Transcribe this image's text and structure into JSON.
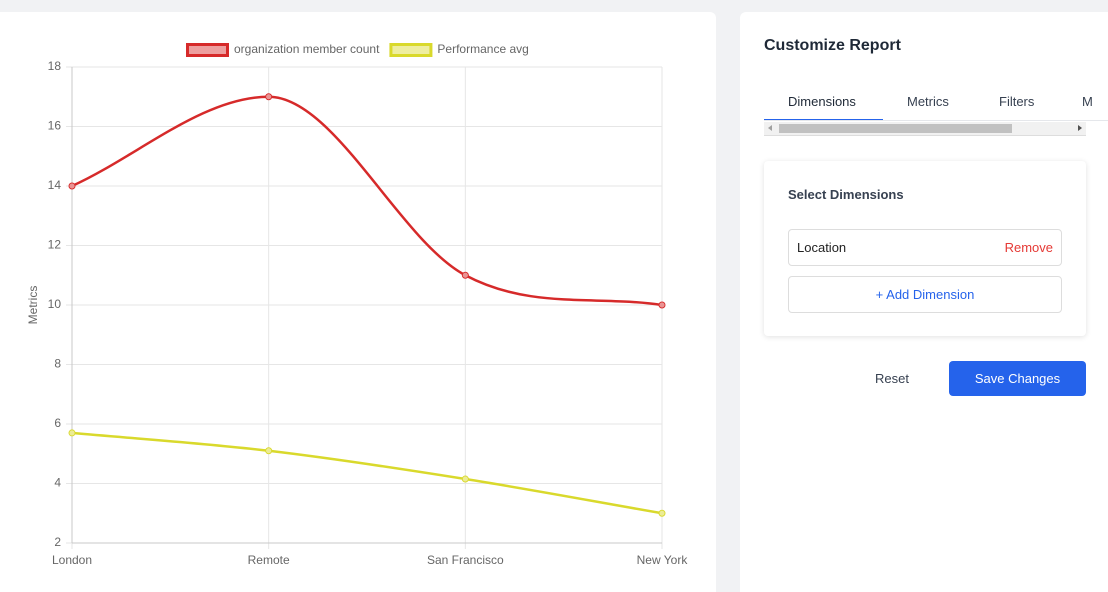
{
  "chart_data": {
    "type": "line",
    "categories": [
      "London",
      "Remote",
      "San Francisco",
      "New York"
    ],
    "y_label": "Metrics",
    "series": [
      {
        "name": "organization member count",
        "color": "#d62a2a",
        "values": [
          14,
          17,
          11,
          10
        ]
      },
      {
        "name": "Performance avg",
        "color": "#d9d92c",
        "values": [
          5.7,
          5.1,
          4.15,
          3.0
        ]
      }
    ],
    "ylim": [
      2,
      18
    ],
    "yticks": [
      2,
      4,
      6,
      8,
      10,
      12,
      14,
      16,
      18
    ],
    "grid": true,
    "legend": "top"
  },
  "panel": {
    "title": "Customize Report",
    "tabs": [
      "Dimensions",
      "Metrics",
      "Filters",
      "M"
    ],
    "card": {
      "title": "Select Dimensions",
      "items": [
        {
          "label": "Location",
          "action": "Remove"
        }
      ],
      "add_button": "+ Add Dimension"
    },
    "reset": "Reset",
    "save": "Save Changes"
  }
}
